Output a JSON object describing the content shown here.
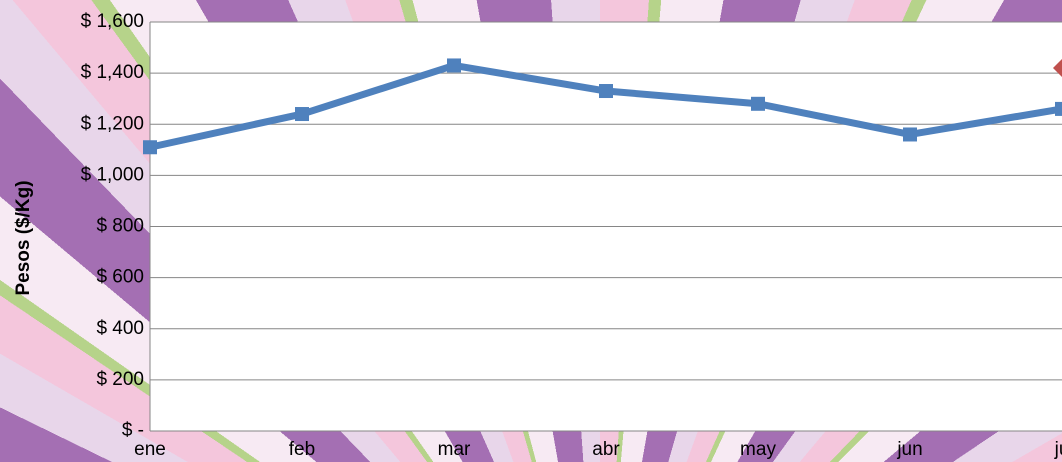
{
  "chart_data": {
    "type": "line",
    "y_axis_label": "Pesos ($/Kg)",
    "categories": [
      "ene",
      "feb",
      "mar",
      "abr",
      "may",
      "jun",
      "ju"
    ],
    "series": [
      {
        "color": "#4f81bd",
        "marker": "square",
        "values": [
          1110,
          1240,
          1430,
          1330,
          1280,
          1160,
          1260
        ]
      },
      {
        "color": "#c0504d",
        "marker": "diamond",
        "values": [
          null,
          null,
          null,
          null,
          null,
          null,
          1420
        ]
      }
    ],
    "ylim": [
      0,
      1600
    ],
    "yticks": [
      {
        "value": 0,
        "label": "$ -"
      },
      {
        "value": 200,
        "label": "$ 200"
      },
      {
        "value": 400,
        "label": "$ 400"
      },
      {
        "value": 600,
        "label": "$ 600"
      },
      {
        "value": 800,
        "label": "$ 800"
      },
      {
        "value": 1000,
        "label": "$ 1,000"
      },
      {
        "value": 1200,
        "label": "$ 1,200"
      },
      {
        "value": 1400,
        "label": "$ 1,400"
      },
      {
        "value": 1600,
        "label": "$ 1,600"
      }
    ],
    "grid": true
  }
}
